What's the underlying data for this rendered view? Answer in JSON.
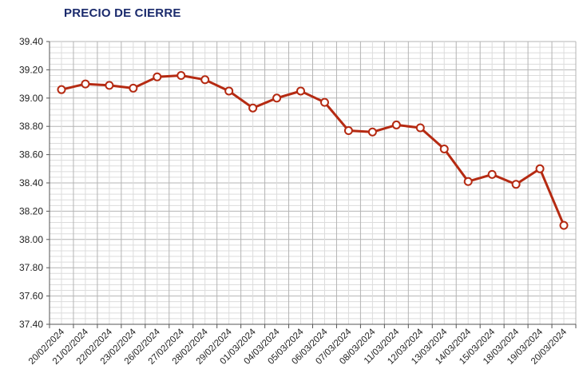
{
  "title": "PRECIO DE CIERRE",
  "chart_data": {
    "type": "line",
    "title": "PRECIO DE CIERRE",
    "xlabel": "",
    "ylabel": "",
    "categories": [
      "20/02/2024",
      "21/02/2024",
      "22/02/2024",
      "23/02/2024",
      "26/02/2024",
      "27/02/2024",
      "28/02/2024",
      "29/02/2024",
      "01/03/2024",
      "04/03/2024",
      "05/03/2024",
      "06/03/2024",
      "07/03/2024",
      "08/03/2024",
      "11/03/2024",
      "12/03/2024",
      "13/03/2024",
      "14/03/2024",
      "15/03/2024",
      "18/03/2024",
      "19/03/2024",
      "20/03/2024"
    ],
    "series": [
      {
        "values": [
          39.06,
          39.1,
          39.09,
          39.07,
          39.15,
          39.16,
          39.13,
          39.05,
          38.93,
          39.0,
          39.05,
          38.97,
          38.77,
          38.76,
          38.81,
          38.79,
          38.64,
          38.41,
          38.46,
          38.39,
          38.5,
          38.1
        ]
      }
    ],
    "ylim": [
      37.4,
      39.4
    ],
    "yticks": [
      "37.40",
      "37.60",
      "37.80",
      "38.00",
      "38.20",
      "38.40",
      "38.60",
      "38.80",
      "39.00",
      "39.20",
      "39.40"
    ],
    "grid": true,
    "colors": {
      "line": "#b52a12",
      "marker_fill": "#ffffff",
      "grid": "#c8c8c8",
      "axis": "#555555"
    }
  }
}
